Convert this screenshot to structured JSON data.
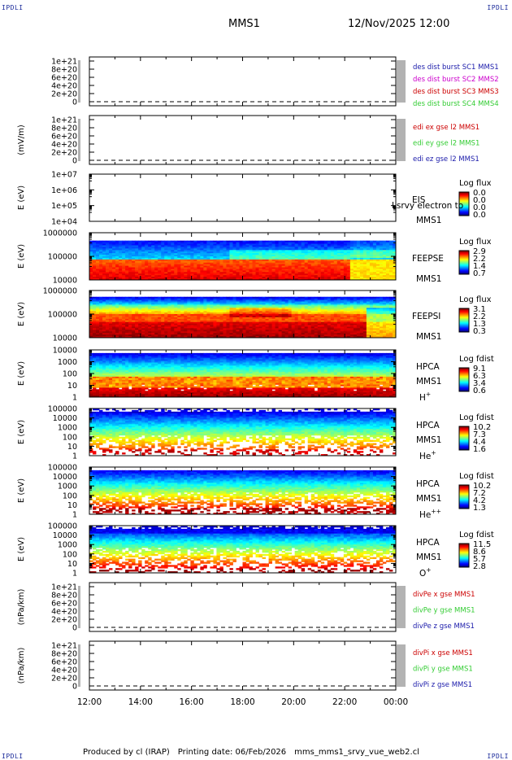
{
  "header": {
    "corner_label": "IPDLI",
    "spacecraft": "MMS1",
    "datetime": "12/Nov/2025 12:00"
  },
  "footer": {
    "produced_by": "Produced by cl (IRAP)",
    "printing_date": "Printing date: 06/Feb/2026",
    "filename": "mms_mms1_srvy_vue_web2.cl"
  },
  "colors": {
    "blue": "#1a1aaa",
    "magenta": "#cc00cc",
    "red": "#cc0000",
    "green": "#33cc33",
    "grid": "#000000"
  },
  "chart_data": [
    {
      "type": "line",
      "id": "panel-des-dist",
      "ylabel": "",
      "yticks": [
        "1e+21",
        "8e+20",
        "6e+20",
        "4e+20",
        "2e+20",
        "0"
      ],
      "legend": [
        {
          "text": "des dist burst SC1 MMS1",
          "color": "blue"
        },
        {
          "text": "des dist burst SC2 MMS2",
          "color": "magenta"
        },
        {
          "text": "des dist burst SC3 MMS3",
          "color": "red"
        },
        {
          "text": "des dist burst SC4 MMS4",
          "color": "green"
        }
      ],
      "series": [],
      "zero_line": true
    },
    {
      "type": "line",
      "id": "panel-edi",
      "ylabel": "(mV/m)",
      "yticks": [
        "1e+21",
        "8e+20",
        "6e+20",
        "4e+20",
        "2e+20",
        "0"
      ],
      "legend": [
        {
          "text": "edi ex gse l2 MMS1",
          "color": "red"
        },
        {
          "text": "edi ey gse l2 MMS1",
          "color": "green"
        },
        {
          "text": "edi ez gse l2 MMS1",
          "color": "blue"
        }
      ],
      "series": [],
      "zero_line": true
    },
    {
      "type": "heatmap",
      "id": "panel-eis",
      "ylabel": "E (eV)",
      "yticks": [
        "1e+07",
        "1e+06",
        "1e+05",
        "1e+04"
      ],
      "instrument": [
        "EIS",
        "MMS1"
      ],
      "overlay_text": "Lsrvy electron to",
      "colorbar": {
        "title": "Log flux",
        "ticks": [
          "0.0",
          "0.0",
          "0.0",
          "0.0"
        ]
      },
      "empty": true
    },
    {
      "type": "heatmap",
      "id": "panel-feeps-e",
      "ylabel": "E (eV)",
      "yticks": [
        "1000000",
        "100000",
        "10000"
      ],
      "instrument": [
        "FEEPSE",
        "MMS1"
      ],
      "colorbar": {
        "title": "Log flux",
        "ticks": [
          "2.9",
          "2.2",
          "1.4",
          "0.7"
        ]
      },
      "pattern": "feeps_e"
    },
    {
      "type": "heatmap",
      "id": "panel-feeps-i",
      "ylabel": "E (eV)",
      "yticks": [
        "1000000",
        "100000",
        "10000"
      ],
      "instrument": [
        "FEEPSI",
        "MMS1"
      ],
      "colorbar": {
        "title": "Log flux",
        "ticks": [
          "3.1",
          "2.2",
          "1.3",
          "0.3"
        ]
      },
      "pattern": "feeps_i"
    },
    {
      "type": "heatmap",
      "id": "panel-hpca-h",
      "ylabel": "E (eV)",
      "yticks": [
        "10000",
        "1000",
        "100",
        "10",
        "1"
      ],
      "instrument": [
        "HPCA",
        "MMS1"
      ],
      "species": "H",
      "species_sup": "+",
      "colorbar": {
        "title": "Log fdist",
        "ticks": [
          "9.1",
          "6.3",
          "3.4",
          "0.6"
        ]
      },
      "pattern": "hpca_h"
    },
    {
      "type": "heatmap",
      "id": "panel-hpca-he",
      "ylabel": "E (eV)",
      "yticks": [
        "100000",
        "10000",
        "1000",
        "100",
        "10",
        "1"
      ],
      "instrument": [
        "HPCA",
        "MMS1"
      ],
      "species": "He",
      "species_sup": "+",
      "colorbar": {
        "title": "Log fdist",
        "ticks": [
          "10.2",
          "7.3",
          "4.4",
          "1.6"
        ]
      },
      "pattern": "hpca_he"
    },
    {
      "type": "heatmap",
      "id": "panel-hpca-hepp",
      "ylabel": "E (eV)",
      "yticks": [
        "100000",
        "10000",
        "1000",
        "100",
        "10",
        "1"
      ],
      "instrument": [
        "HPCA",
        "MMS1"
      ],
      "species": "He",
      "species_sup": "++",
      "colorbar": {
        "title": "Log fdist",
        "ticks": [
          "10.2",
          "7.2",
          "4.2",
          "1.3"
        ]
      },
      "pattern": "hpca_hepp"
    },
    {
      "type": "heatmap",
      "id": "panel-hpca-o",
      "ylabel": "E (eV)",
      "yticks": [
        "100000",
        "10000",
        "1000",
        "100",
        "10",
        "1"
      ],
      "instrument": [
        "HPCA",
        "MMS1"
      ],
      "species": "O",
      "species_sup": "+",
      "colorbar": {
        "title": "Log fdist",
        "ticks": [
          "11.5",
          "8.6",
          "5.7",
          "2.8"
        ]
      },
      "pattern": "hpca_o"
    },
    {
      "type": "line",
      "id": "panel-divpe",
      "ylabel": "(nPa/km)",
      "yticks": [
        "1e+21",
        "8e+20",
        "6e+20",
        "4e+20",
        "2e+20",
        "0"
      ],
      "legend": [
        {
          "text": "divPe x gse MMS1",
          "color": "red"
        },
        {
          "text": "divPe y gse MMS1",
          "color": "green"
        },
        {
          "text": "divPe z gse MMS1",
          "color": "blue"
        }
      ],
      "series": [],
      "zero_line": true
    },
    {
      "type": "line",
      "id": "panel-divpi",
      "ylabel": "(nPa/km)",
      "yticks": [
        "1e+21",
        "8e+20",
        "6e+20",
        "4e+20",
        "2e+20",
        "0"
      ],
      "legend": [
        {
          "text": "divPi x gse MMS1",
          "color": "red"
        },
        {
          "text": "divPi y gse MMS1",
          "color": "green"
        },
        {
          "text": "divPi z gse MMS1",
          "color": "blue"
        }
      ],
      "series": [],
      "zero_line": true
    }
  ],
  "xaxis": {
    "ticks": [
      "12:00",
      "14:00",
      "16:00",
      "18:00",
      "20:00",
      "22:00",
      "00:00"
    ],
    "range_hours": [
      12,
      24
    ]
  }
}
